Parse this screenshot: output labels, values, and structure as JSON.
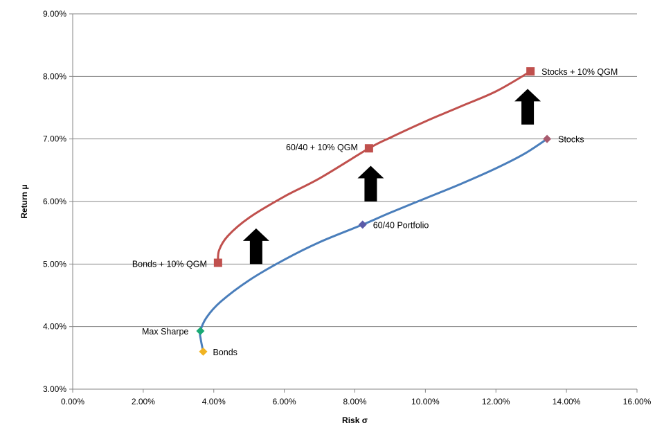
{
  "chart_data": {
    "type": "line",
    "xlabel": "Risk σ",
    "ylabel": "Return μ",
    "xlim": [
      0,
      16
    ],
    "ylim": [
      3,
      9
    ],
    "x_ticks": [
      "0.00%",
      "2.00%",
      "4.00%",
      "6.00%",
      "8.00%",
      "10.00%",
      "12.00%",
      "14.00%",
      "16.00%"
    ],
    "y_ticks": [
      "3.00%",
      "4.00%",
      "5.00%",
      "6.00%",
      "7.00%",
      "8.00%",
      "9.00%"
    ],
    "grid": "horizontal",
    "legend": "none",
    "series": [
      {
        "color": "#4a7ebb",
        "marker": "diamond",
        "curve": [
          [
            3.7,
            3.6
          ],
          [
            3.63,
            3.8
          ],
          [
            3.62,
            3.93
          ],
          [
            3.8,
            4.15
          ],
          [
            4.2,
            4.4
          ],
          [
            5.0,
            4.74
          ],
          [
            6.0,
            5.07
          ],
          [
            7.0,
            5.35
          ],
          [
            8.22,
            5.63
          ],
          [
            9.0,
            5.82
          ],
          [
            10.0,
            6.05
          ],
          [
            11.0,
            6.28
          ],
          [
            12.0,
            6.53
          ],
          [
            12.8,
            6.76
          ],
          [
            13.45,
            7.0
          ]
        ],
        "points": [
          {
            "label": "Bonds",
            "x": 3.7,
            "y": 3.6,
            "color": "#f0b323"
          },
          {
            "label": "Max Sharpe",
            "x": 3.62,
            "y": 3.93,
            "color": "#19a974"
          },
          {
            "label": "60/40 Portfolio",
            "x": 8.22,
            "y": 5.63,
            "color": "#5b5ba8"
          },
          {
            "label": "Stocks",
            "x": 13.45,
            "y": 7.0,
            "color": "#a85a6e"
          }
        ]
      },
      {
        "color": "#c0504d",
        "marker": "square",
        "curve": [
          [
            4.12,
            5.02
          ],
          [
            4.15,
            5.22
          ],
          [
            4.4,
            5.45
          ],
          [
            5.0,
            5.74
          ],
          [
            6.0,
            6.08
          ],
          [
            7.0,
            6.37
          ],
          [
            8.4,
            6.85
          ],
          [
            9.0,
            7.02
          ],
          [
            10.0,
            7.28
          ],
          [
            11.0,
            7.52
          ],
          [
            12.0,
            7.76
          ],
          [
            12.98,
            8.08
          ]
        ],
        "points": [
          {
            "label": "Bonds + 10% QGM",
            "x": 4.12,
            "y": 5.02,
            "color": "#c0504d"
          },
          {
            "label": "60/40 + 10% QGM",
            "x": 8.4,
            "y": 6.85,
            "color": "#c0504d"
          },
          {
            "label": "Stocks + 10% QGM",
            "x": 12.98,
            "y": 8.08,
            "color": "#c0504d"
          }
        ]
      }
    ],
    "arrows": [
      {
        "x": 5.2,
        "y_from": 5.0,
        "y_to": 5.57
      },
      {
        "x": 8.45,
        "y_from": 6.0,
        "y_to": 6.57
      },
      {
        "x": 12.9,
        "y_from": 7.23,
        "y_to": 7.8
      }
    ]
  }
}
